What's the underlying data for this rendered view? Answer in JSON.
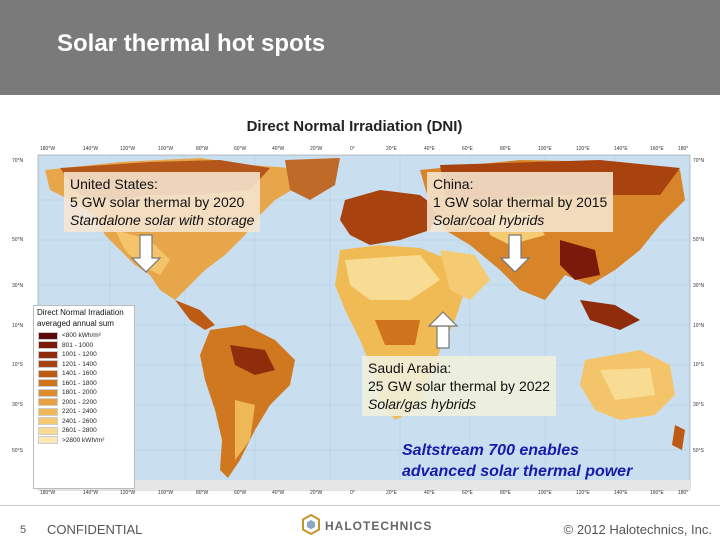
{
  "header": {
    "title": "Solar thermal hot spots"
  },
  "map": {
    "title": "Direct Normal Irradiation (DNI)",
    "lon_labels": [
      "180°W",
      "140°W",
      "120°W",
      "100°W",
      "80°W",
      "60°W",
      "40°W",
      "20°W",
      "0°",
      "20°E",
      "40°E",
      "60°E",
      "80°E",
      "100°E",
      "120°E",
      "140°E",
      "160°E",
      "180°"
    ],
    "lat_labels_left": [
      "70°N",
      "50°N",
      "30°N",
      "10°N",
      "10°S",
      "30°S",
      "50°S"
    ],
    "lat_labels_right": [
      "70°N",
      "50°N",
      "30°N",
      "10°N",
      "10°S",
      "30°S",
      "50°S"
    ]
  },
  "callouts": {
    "us": {
      "line1": "United States:",
      "line2": "5 GW solar thermal by 2020",
      "line3": "Standalone solar with storage"
    },
    "china": {
      "line1": "China:",
      "line2": "1 GW solar thermal by 2015",
      "line3": "Solar/coal hybrids"
    },
    "saudi": {
      "line1": "Saudi Arabia:",
      "line2": "25 GW solar thermal by 2022",
      "line3": "Solar/gas hybrids"
    }
  },
  "legend": {
    "title1": "Direct Normal Irradiation",
    "title2": "averaged annual sum",
    "rows": [
      {
        "label": "<800 kWh/m²",
        "color": "#5a0a0a"
      },
      {
        "label": "801 - 1000",
        "color": "#7a1a0a"
      },
      {
        "label": "1001 - 1200",
        "color": "#8f2c0c"
      },
      {
        "label": "1201 - 1400",
        "color": "#a8430f"
      },
      {
        "label": "1401 - 1600",
        "color": "#bd5a14"
      },
      {
        "label": "1601 - 1800",
        "color": "#cf731c"
      },
      {
        "label": "1801 - 2000",
        "color": "#dc8c2a"
      },
      {
        "label": "2001 - 2200",
        "color": "#e6a23e"
      },
      {
        "label": "2201 - 2400",
        "color": "#efb857"
      },
      {
        "label": "2401 - 2600",
        "color": "#f4cb72"
      },
      {
        "label": "2601 - 2800",
        "color": "#f8dc93"
      },
      {
        "label": ">2800 kWh/m²",
        "color": "#fbeab8"
      }
    ]
  },
  "tagline": {
    "line1": "Saltstream 700 enables",
    "line2": "advanced solar thermal power"
  },
  "footer": {
    "page_number": "5",
    "confidential": "CONFIDENTIAL",
    "logo_text": "HALOTECHNICS",
    "copyright": "© 2012 Halotechnics, Inc."
  },
  "colors": {
    "header_bg": "#7a7a7a",
    "ocean": "#c9dff0",
    "tagline": "#1a1aa8"
  }
}
